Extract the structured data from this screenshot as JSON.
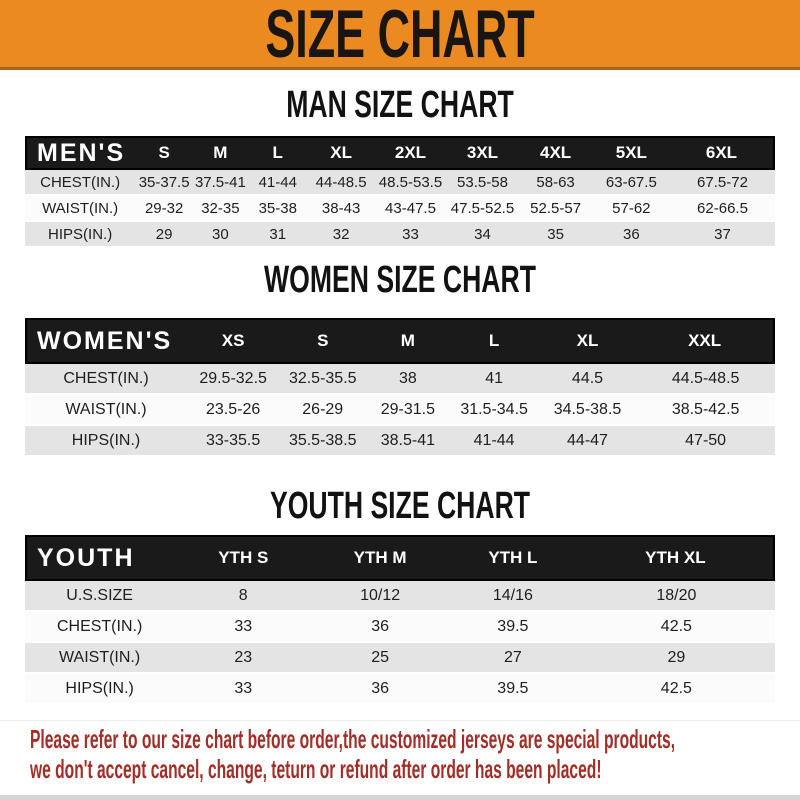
{
  "banner": {
    "title": "SIZE CHART"
  },
  "sections": [
    {
      "title": "MAN SIZE CHART",
      "header_label": "MEN'S",
      "columns": [
        "S",
        "M",
        "L",
        "XL",
        "2XL",
        "3XL",
        "4XL",
        "5XL",
        "6XL"
      ],
      "rows": [
        {
          "label": "CHEST(IN.)",
          "values": [
            "35-37.5",
            "37.5-41",
            "41-44",
            "44-48.5",
            "48.5-53.5",
            "53.5-58",
            "58-63",
            "63-67.5",
            "67.5-72"
          ]
        },
        {
          "label": "WAIST(IN.)",
          "values": [
            "29-32",
            "32-35",
            "35-38",
            "38-43",
            "43-47.5",
            "47.5-52.5",
            "52.5-57",
            "57-62",
            "62-66.5"
          ]
        },
        {
          "label": "HIPS(IN.)",
          "values": [
            "29",
            "30",
            "31",
            "32",
            "33",
            "34",
            "35",
            "36",
            "37"
          ]
        }
      ]
    },
    {
      "title": "WOMEN SIZE CHART",
      "header_label": "WOMEN'S",
      "columns": [
        "XS",
        "S",
        "M",
        "L",
        "XL",
        "XXL"
      ],
      "rows": [
        {
          "label": "CHEST(IN.)",
          "values": [
            "29.5-32.5",
            "32.5-35.5",
            "38",
            "41",
            "44.5",
            "44.5-48.5"
          ]
        },
        {
          "label": "WAIST(IN.)",
          "values": [
            "23.5-26",
            "26-29",
            "29-31.5",
            "31.5-34.5",
            "34.5-38.5",
            "38.5-42.5"
          ]
        },
        {
          "label": "HIPS(IN.)",
          "values": [
            "33-35.5",
            "35.5-38.5",
            "38.5-41",
            "41-44",
            "44-47",
            "47-50"
          ]
        }
      ]
    },
    {
      "title": "YOUTH SIZE CHART",
      "header_label": "YOUTH",
      "columns": [
        "YTH S",
        "YTH M",
        "YTH L",
        "YTH XL"
      ],
      "rows": [
        {
          "label": "U.S.SIZE",
          "values": [
            "8",
            "10/12",
            "14/16",
            "18/20"
          ]
        },
        {
          "label": "CHEST(IN.)",
          "values": [
            "33",
            "36",
            "39.5",
            "42.5"
          ]
        },
        {
          "label": "WAIST(IN.)",
          "values": [
            "23",
            "25",
            "27",
            "29"
          ]
        },
        {
          "label": "HIPS(IN.)",
          "values": [
            "33",
            "36",
            "39.5",
            "42.5"
          ]
        }
      ]
    }
  ],
  "footer": {
    "line1": "Please refer to our size chart before order,the customized jerseys are special products,",
    "line2": "we don't accept cancel, change, teturn or refund after order has been placed!"
  },
  "colors": {
    "banner_orange": "#EB8A21",
    "header_bar_black": "#1A1A1A",
    "row_gray": "#E4E4E4",
    "footer_red": "#A32D27"
  }
}
